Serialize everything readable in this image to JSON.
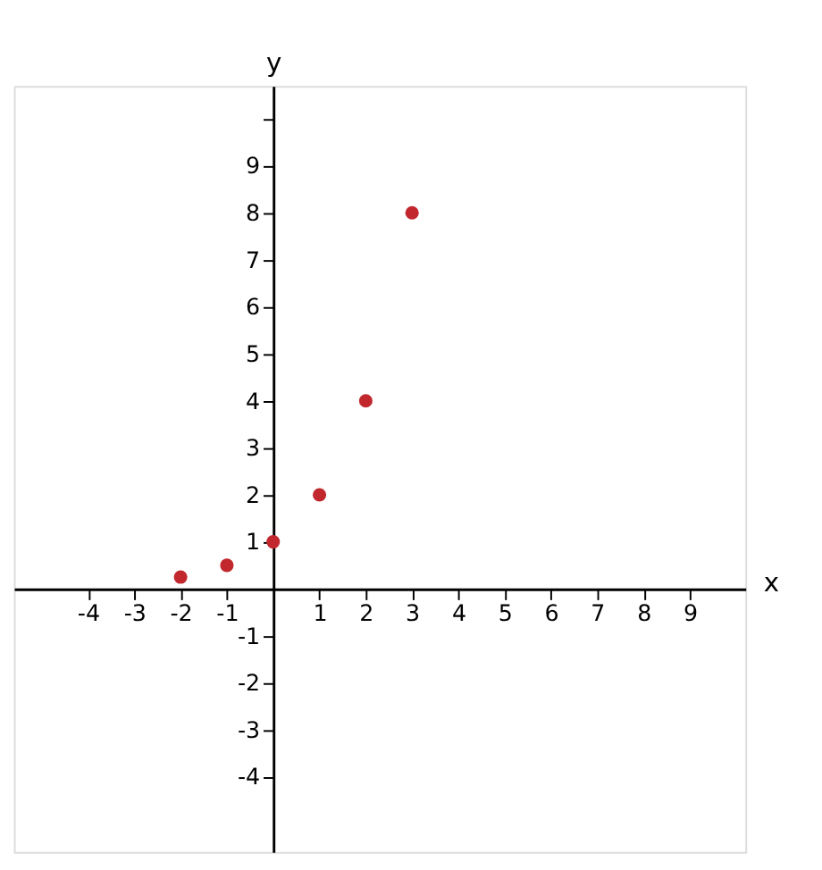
{
  "chart_data": {
    "type": "scatter",
    "xlabel": "x",
    "ylabel": "y",
    "x": [
      -2,
      -1,
      0,
      1,
      2,
      3
    ],
    "series": [
      {
        "color": "#c1272d",
        "values": [
          0.25,
          0.5,
          1,
          2,
          4,
          8
        ]
      }
    ],
    "xlim": [
      -5.6,
      10.2
    ],
    "ylim": [
      -5.6,
      10.7
    ],
    "xticks": [
      -4,
      -3,
      -2,
      -1,
      1,
      2,
      3,
      4,
      5,
      6,
      7,
      8,
      9
    ],
    "yticks": [
      -4,
      -3,
      -2,
      -1,
      1,
      2,
      3,
      4,
      5,
      6,
      7,
      8,
      9,
      {
        "value": 10,
        "label": null
      }
    ],
    "grid": false,
    "marker": "circle"
  }
}
